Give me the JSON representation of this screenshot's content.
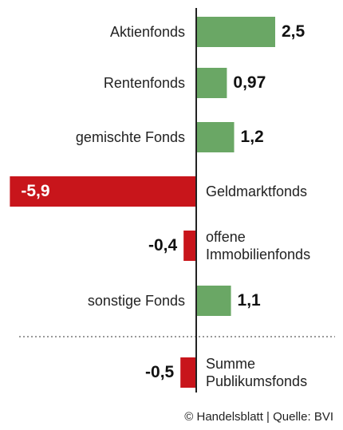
{
  "chart_data": {
    "type": "bar",
    "categories": [
      "Aktienfonds",
      "Rentenfonds",
      "gemischte Fonds",
      "Geldmarktfonds",
      "offene Immobilienfonds",
      "sonstige Fonds",
      "Summe Publikumsfonds"
    ],
    "values": [
      2.5,
      0.97,
      1.2,
      -5.9,
      -0.4,
      1.1,
      -0.5
    ],
    "value_labels": [
      "2,5",
      "0,97",
      "1,2",
      "-5,9",
      "-0,4",
      "1,1",
      "-0,5"
    ],
    "colors": [
      "#6aa765",
      "#6aa765",
      "#6aa765",
      "#c8151b",
      "#c8151b",
      "#6aa765",
      "#c8151b"
    ],
    "source": "© Handelsblatt | Quelle: BVI"
  }
}
